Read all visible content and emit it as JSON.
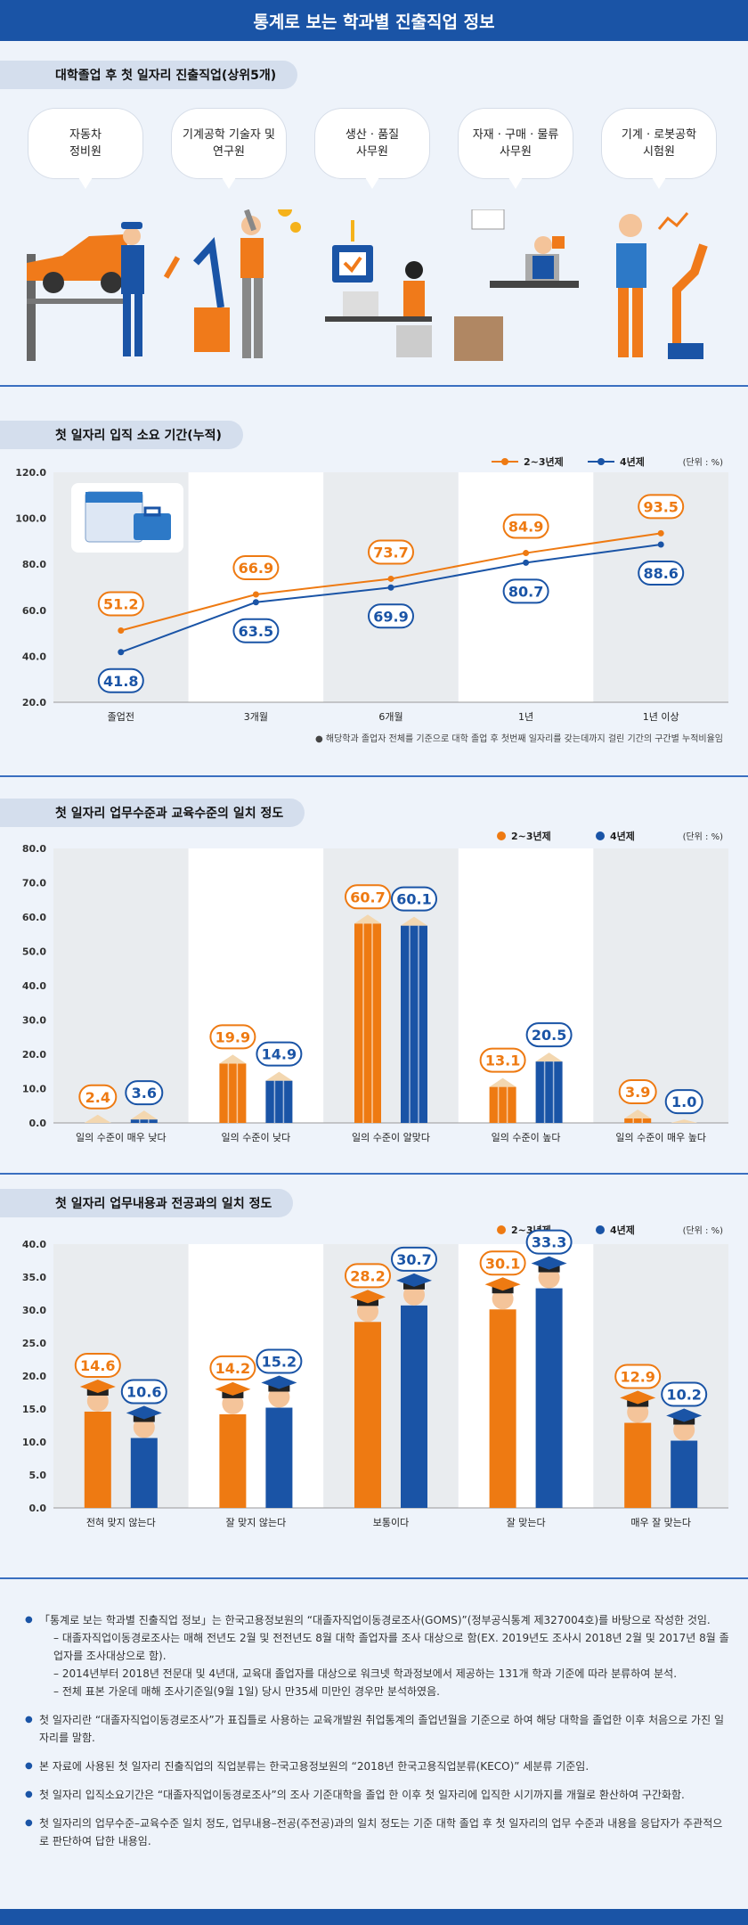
{
  "header": {
    "title": "통계로 보는 학과별 진출직업 정보"
  },
  "section1": {
    "title": "대학졸업 후 첫 일자리 진출직업(상위5개)",
    "jobs": [
      {
        "label": "자동차\n정비원"
      },
      {
        "label": "기계공학 기술자 및\n연구원"
      },
      {
        "label": "생산 · 품질\n사무원"
      },
      {
        "label": "자재 · 구매 · 물류\n사무원"
      },
      {
        "label": "기계 · 로봇공학\n시험원"
      }
    ]
  },
  "section2": {
    "title": "첫 일자리 입직 소요 기간(누적)"
  },
  "section3": {
    "title": "첫 일자리 업무수준과 교육수준의 일치 정도"
  },
  "section4": {
    "title": "첫 일자리 업무내용과 전공과의 일치 정도"
  },
  "colors": {
    "orange": "#ee7a12",
    "blue": "#1a54a6",
    "header": "#1a54a6"
  },
  "chart_data": [
    {
      "type": "line",
      "title": "첫 일자리 입직 소요 기간(누적)",
      "unit": "(단위 : %)",
      "categories": [
        "졸업전",
        "3개월",
        "6개월",
        "1년",
        "1년 이상"
      ],
      "series": [
        {
          "name": "2~3년제",
          "values": [
            51.2,
            66.9,
            73.7,
            84.9,
            93.5
          ]
        },
        {
          "name": "4년제",
          "values": [
            41.8,
            63.5,
            69.9,
            80.7,
            88.6
          ]
        }
      ],
      "ylim": [
        20,
        120
      ],
      "yticks": [
        "20.0",
        "40.0",
        "60.0",
        "80.0",
        "100.0",
        "120.0"
      ],
      "legend": "top-right",
      "note": "해당학과 졸업자 전체를 기준으로 대학 졸업 후 첫번째 일자리를 갖는데까지 걸린 기간의 구간별 누적비율임"
    },
    {
      "type": "bar",
      "title": "첫 일자리 업무수준과 교육수준의 일치 정도",
      "unit": "(단위 : %)",
      "categories": [
        "일의 수준이 매우 낮다",
        "일의 수준이 낮다",
        "일의 수준이 알맞다",
        "일의 수준이 높다",
        "일의 수준이 매우 높다"
      ],
      "series": [
        {
          "name": "2~3년제",
          "values": [
            2.4,
            19.9,
            60.7,
            13.1,
            3.9
          ]
        },
        {
          "name": "4년제",
          "values": [
            3.6,
            14.9,
            60.1,
            20.5,
            1.0
          ]
        }
      ],
      "ylim": [
        0,
        80
      ],
      "yticks": [
        "0.0",
        "10.0",
        "20.0",
        "30.0",
        "40.0",
        "50.0",
        "60.0",
        "70.0",
        "80.0"
      ],
      "legend": "top-right"
    },
    {
      "type": "bar",
      "title": "첫 일자리 업무내용과 전공과의 일치 정도",
      "unit": "(단위 : %)",
      "categories": [
        "전혀 맞지 않는다",
        "잘 맞지 않는다",
        "보통이다",
        "잘 맞는다",
        "매우 잘 맞는다"
      ],
      "series": [
        {
          "name": "2~3년제",
          "values": [
            14.6,
            14.2,
            28.2,
            30.1,
            12.9
          ]
        },
        {
          "name": "4년제",
          "values": [
            10.6,
            15.2,
            30.7,
            33.3,
            10.2
          ]
        }
      ],
      "ylim": [
        0,
        40
      ],
      "yticks": [
        "0.0",
        "5.0",
        "10.0",
        "15.0",
        "20.0",
        "25.0",
        "30.0",
        "35.0",
        "40.0"
      ],
      "legend": "top-right"
    }
  ],
  "footnotes": [
    {
      "text": "「통계로 보는 학과별 진출직업 정보」는 한국고용정보원의 “대졸자직업이동경로조사(GOMS)”(정부공식통계 제327004호)를 바탕으로 작성한 것임.",
      "subs": [
        "– 대졸자직업이동경로조사는 매해 전년도 2월 및 전전년도 8월 대학 졸업자를 조사 대상으로 함(EX. 2019년도 조사시 2018년 2월 및 2017년 8월 졸업자를 조사대상으로 함).",
        "– 2014년부터 2018년 전문대 및 4년대, 교육대 졸업자를 대상으로 워크넷 학과정보에서 제공하는 131개 학과 기준에 따라 분류하여 분석.",
        "– 전체 표본 가운데 매해 조사기준일(9월 1일) 당시 만35세 미만인 경우만 분석하였음."
      ]
    },
    {
      "text": "첫 일자리란 “대졸자직업이동경로조사”가 표집틀로 사용하는 교육개발원 취업통계의 졸업년월을 기준으로 하여 해당 대학을 졸업한 이후 처음으로 가진 일자리를 말함.",
      "subs": []
    },
    {
      "text": "본 자료에 사용된 첫 일자리 진출직업의 직업분류는 한국고용정보원의 “2018년 한국고용직업분류(KECO)” 세분류 기준임.",
      "subs": []
    },
    {
      "text": "첫 일자리 입직소요기간은 “대졸자직업이동경로조사”의 조사 기준대학을 졸업 한 이후 첫 일자리에 입직한 시기까지를 개월로 환산하여 구간화함.",
      "subs": []
    },
    {
      "text": "첫 일자리의 업무수준–교육수준 일치 정도, 업무내용–전공(주전공)과의 일치 정도는 기준 대학 졸업 후 첫 일자리의 업무 수준과 내용을 응답자가 주관적으로 판단하여 답한 내용임.",
      "subs": []
    }
  ]
}
